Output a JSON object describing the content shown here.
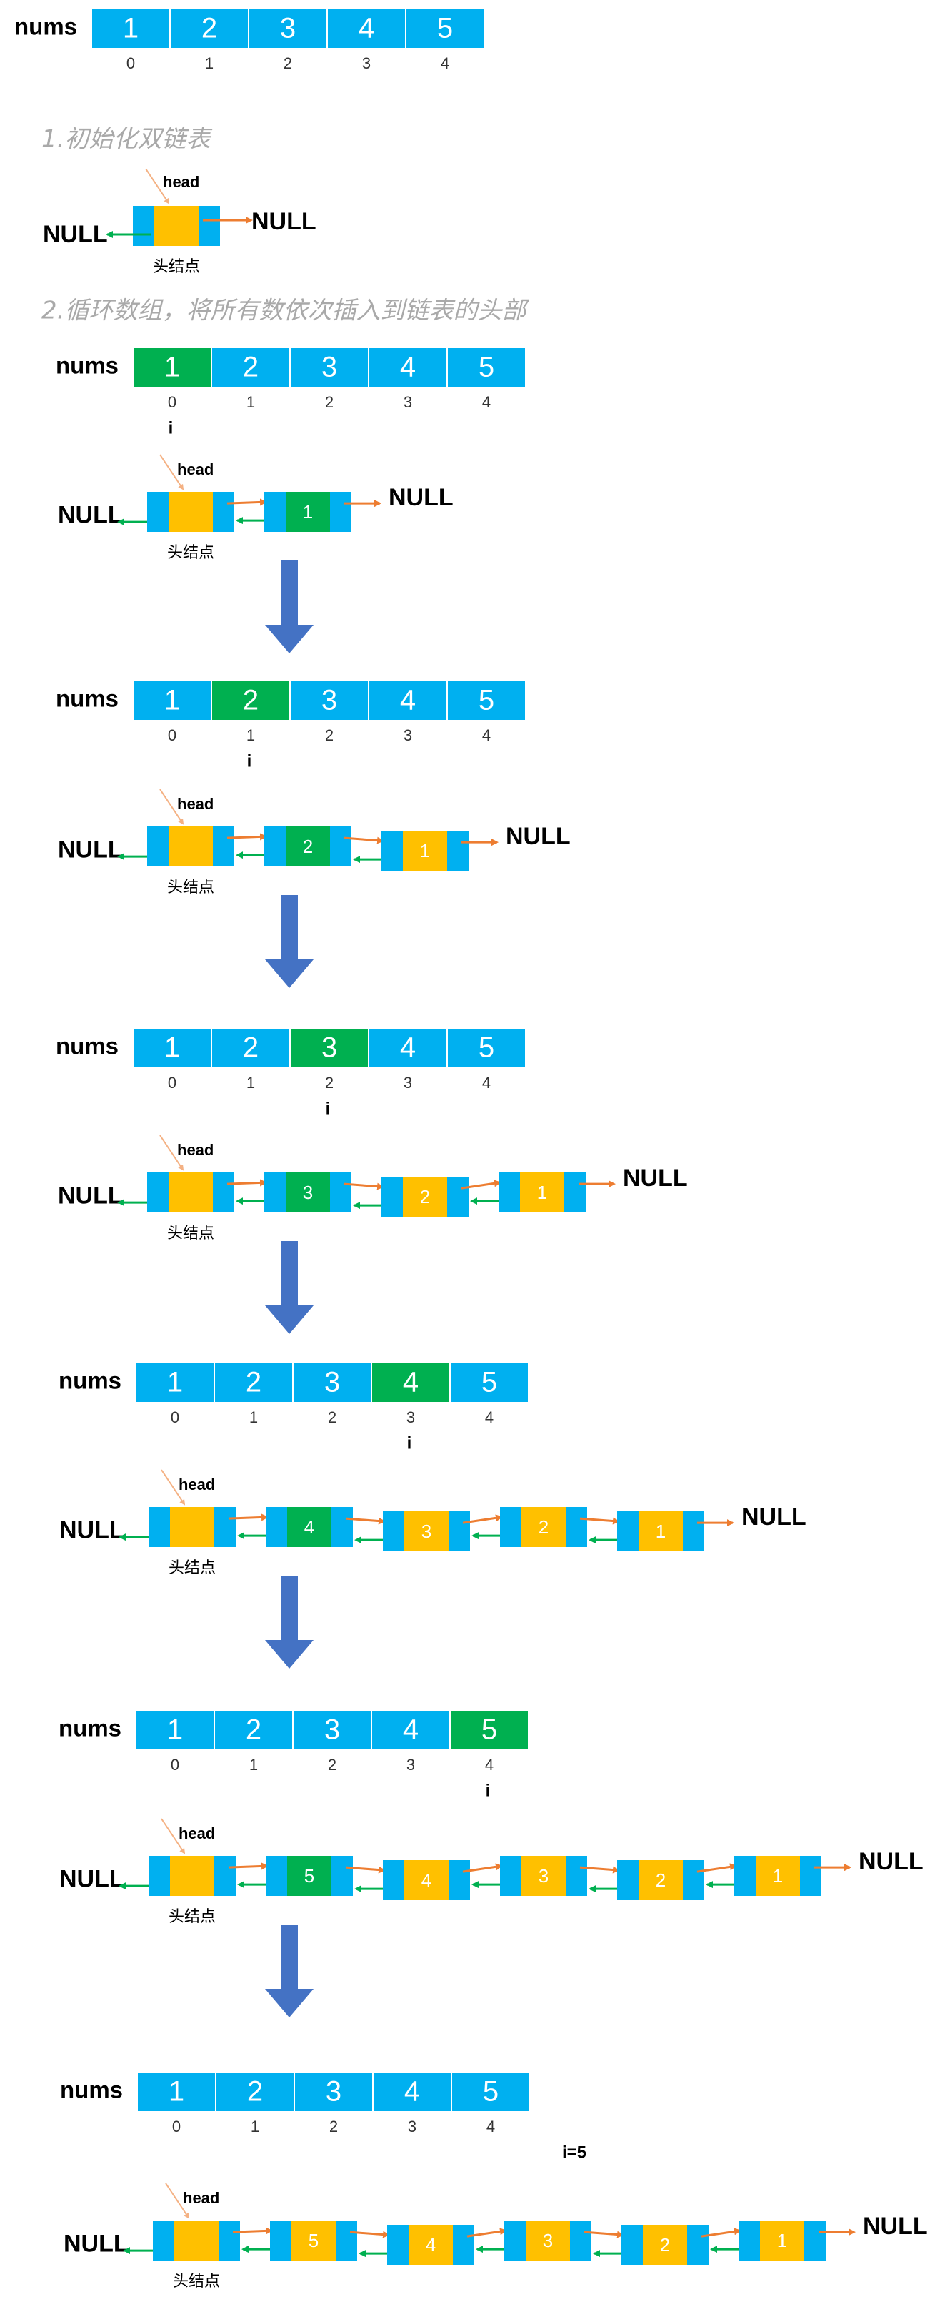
{
  "labels": {
    "nums": "nums",
    "null": "NULL",
    "head": "head",
    "head_node": "头结点",
    "index_marker": "i",
    "step1": "1.初始化双链表",
    "step2": "2.循环数组，将所有数依次插入到链表的头部",
    "final_marker": "i=5"
  },
  "array": {
    "values": [
      "1",
      "2",
      "3",
      "4",
      "5"
    ],
    "indices": [
      "0",
      "1",
      "2",
      "3",
      "4"
    ]
  },
  "stages": [
    {
      "highlight": 0,
      "list": [
        "1"
      ]
    },
    {
      "highlight": 1,
      "list": [
        "2",
        "1"
      ]
    },
    {
      "highlight": 2,
      "list": [
        "3",
        "2",
        "1"
      ]
    },
    {
      "highlight": 3,
      "list": [
        "4",
        "3",
        "2",
        "1"
      ]
    },
    {
      "highlight": 4,
      "list": [
        "5",
        "4",
        "3",
        "2",
        "1"
      ]
    }
  ],
  "final_list": [
    "5",
    "4",
    "3",
    "2",
    "1"
  ],
  "colors": {
    "cell": "#00b0f0",
    "highlight": "#00b050",
    "node_data": "#ffc000",
    "next_arrow": "#ed7d31",
    "prev_arrow": "#00b050",
    "down_arrow": "#4472c4",
    "step_text": "#a9a9a9"
  }
}
